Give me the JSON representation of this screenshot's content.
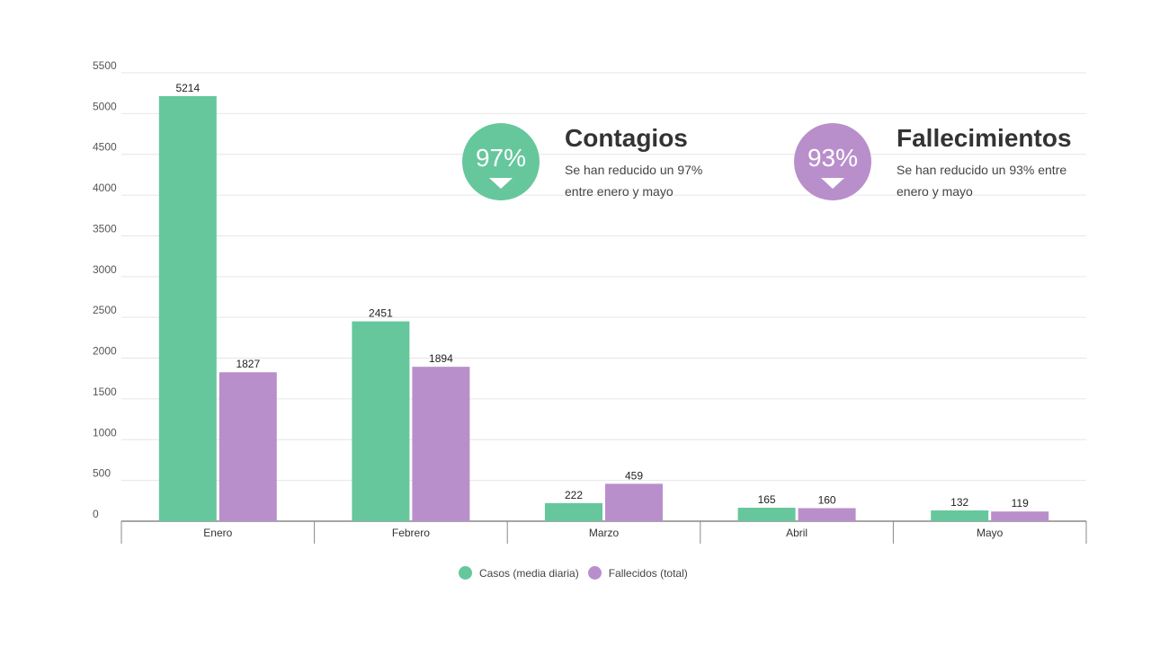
{
  "colors": {
    "casos": "#66c79c",
    "fallecidos": "#b98fcb",
    "grid": "#e6e6e6",
    "axis": "#888888"
  },
  "chart_data": {
    "type": "bar",
    "categories": [
      "Enero",
      "Febrero",
      "Marzo",
      "Abril",
      "Mayo"
    ],
    "series": [
      {
        "name": "Casos (media diaria)",
        "values": [
          5214,
          2451,
          222,
          165,
          132
        ]
      },
      {
        "name": "Fallecidos (total)",
        "values": [
          1827,
          1894,
          459,
          160,
          119
        ]
      }
    ],
    "yticks": [
      0,
      500,
      1000,
      1500,
      2000,
      2500,
      3000,
      3500,
      4000,
      4500,
      5000,
      5500
    ],
    "ylim": [
      0,
      5500
    ],
    "legend_position": "bottom-center",
    "grid": true
  },
  "callouts": [
    {
      "percent": "97%",
      "title": "Contagios",
      "desc_line1": "Se han reducido un 97%",
      "desc_line2": "entre enero y mayo"
    },
    {
      "percent": "93%",
      "title": "Fallecimientos",
      "desc_line1": "Se han reducido un 93% entre",
      "desc_line2": "enero y mayo"
    }
  ],
  "legend": [
    {
      "label": "Casos (media diaria)",
      "color": "#66c79c"
    },
    {
      "label": "Fallecidos (total)",
      "color": "#b98fcb"
    }
  ]
}
